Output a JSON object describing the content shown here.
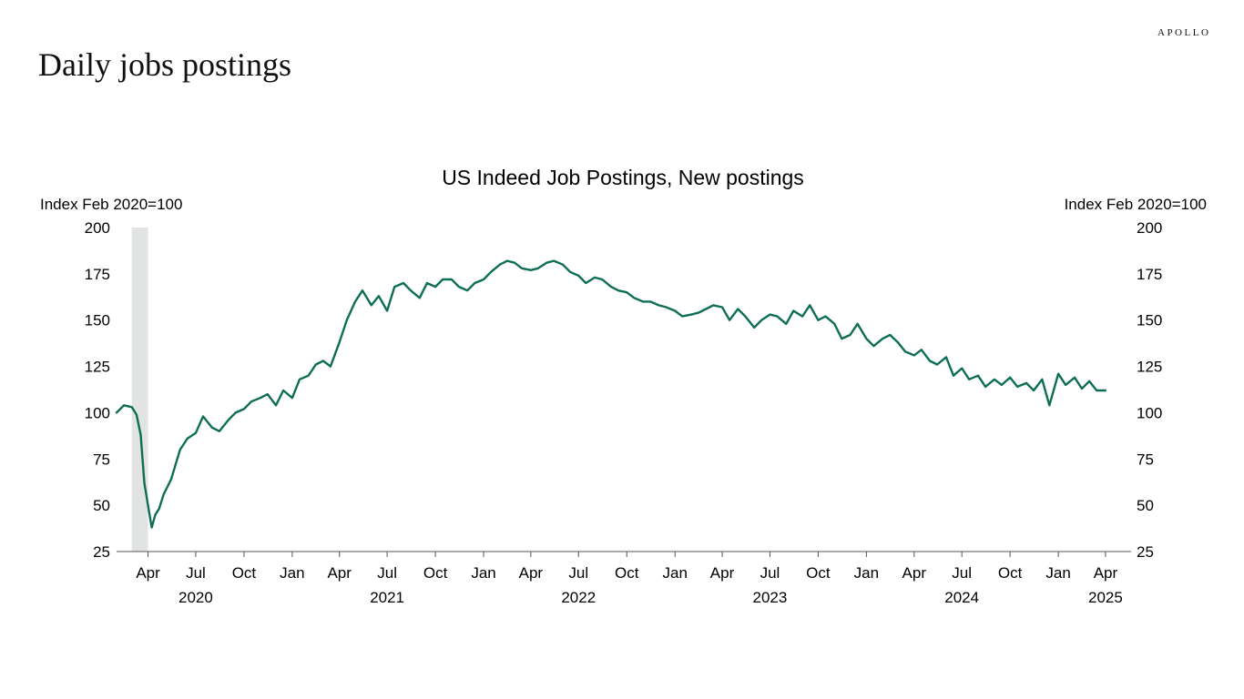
{
  "page": {
    "title": "Daily jobs postings",
    "brand": "APOLLO"
  },
  "chart_data": {
    "type": "line",
    "title": "US Indeed Job Postings, New postings",
    "ylabel_left": "Index Feb 2020=100",
    "ylabel_right": "Index Feb 2020=100",
    "ylim": [
      25,
      200
    ],
    "yticks": [
      "25",
      "50",
      "75",
      "100",
      "125",
      "150",
      "175",
      "200"
    ],
    "xlim": [
      "2020-02-01",
      "2025-04-15"
    ],
    "month_ticks": [
      {
        "date": "2020-04-01",
        "label": "Apr"
      },
      {
        "date": "2020-07-01",
        "label": "Jul"
      },
      {
        "date": "2020-10-01",
        "label": "Oct"
      },
      {
        "date": "2021-01-01",
        "label": "Jan"
      },
      {
        "date": "2021-04-01",
        "label": "Apr"
      },
      {
        "date": "2021-07-01",
        "label": "Jul"
      },
      {
        "date": "2021-10-01",
        "label": "Oct"
      },
      {
        "date": "2022-01-01",
        "label": "Jan"
      },
      {
        "date": "2022-04-01",
        "label": "Apr"
      },
      {
        "date": "2022-07-01",
        "label": "Jul"
      },
      {
        "date": "2022-10-01",
        "label": "Oct"
      },
      {
        "date": "2023-01-01",
        "label": "Jan"
      },
      {
        "date": "2023-04-01",
        "label": "Apr"
      },
      {
        "date": "2023-07-01",
        "label": "Jul"
      },
      {
        "date": "2023-10-01",
        "label": "Oct"
      },
      {
        "date": "2024-01-01",
        "label": "Jan"
      },
      {
        "date": "2024-04-01",
        "label": "Apr"
      },
      {
        "date": "2024-07-01",
        "label": "Jul"
      },
      {
        "date": "2024-10-01",
        "label": "Oct"
      },
      {
        "date": "2025-01-01",
        "label": "Jan"
      },
      {
        "date": "2025-04-01",
        "label": "Apr"
      }
    ],
    "year_labels": [
      {
        "date": "2020-07-01",
        "label": "2020"
      },
      {
        "date": "2021-07-01",
        "label": "2021"
      },
      {
        "date": "2022-07-01",
        "label": "2022"
      },
      {
        "date": "2023-07-01",
        "label": "2023"
      },
      {
        "date": "2024-07-01",
        "label": "2024"
      },
      {
        "date": "2025-04-01",
        "label": "2025"
      }
    ],
    "recession_band": [
      "2020-03-01",
      "2020-04-01"
    ],
    "line_color": "#0e6e55",
    "band_color": "#e2e4e3",
    "series": [
      {
        "x": [
          "2020-02-01",
          "2020-02-15",
          "2020-03-01",
          "2020-03-10",
          "2020-03-18",
          "2020-03-25",
          "2020-04-01",
          "2020-04-08",
          "2020-04-15",
          "2020-04-22",
          "2020-05-01",
          "2020-05-15",
          "2020-06-01",
          "2020-06-15",
          "2020-07-01",
          "2020-07-15",
          "2020-08-01",
          "2020-08-15",
          "2020-09-01",
          "2020-09-15",
          "2020-10-01",
          "2020-10-15",
          "2020-11-01",
          "2020-11-15",
          "2020-12-01",
          "2020-12-15",
          "2021-01-01",
          "2021-01-15",
          "2021-02-01",
          "2021-02-15",
          "2021-03-01",
          "2021-03-15",
          "2021-04-01",
          "2021-04-15",
          "2021-05-01",
          "2021-05-15",
          "2021-06-01",
          "2021-06-15",
          "2021-07-01",
          "2021-07-15",
          "2021-08-01",
          "2021-08-15",
          "2021-09-01",
          "2021-09-15",
          "2021-10-01",
          "2021-10-15",
          "2021-11-01",
          "2021-11-15",
          "2021-12-01",
          "2021-12-15",
          "2022-01-01",
          "2022-01-15",
          "2022-02-01",
          "2022-02-15",
          "2022-03-01",
          "2022-03-15",
          "2022-04-01",
          "2022-04-15",
          "2022-05-01",
          "2022-05-15",
          "2022-06-01",
          "2022-06-15",
          "2022-07-01",
          "2022-07-15",
          "2022-08-01",
          "2022-08-15",
          "2022-09-01",
          "2022-09-15",
          "2022-10-01",
          "2022-10-15",
          "2022-11-01",
          "2022-11-15",
          "2022-12-01",
          "2022-12-15",
          "2023-01-01",
          "2023-01-15",
          "2023-02-01",
          "2023-02-15",
          "2023-03-01",
          "2023-03-15",
          "2023-04-01",
          "2023-04-15",
          "2023-05-01",
          "2023-05-15",
          "2023-06-01",
          "2023-06-15",
          "2023-07-01",
          "2023-07-15",
          "2023-08-01",
          "2023-08-15",
          "2023-09-01",
          "2023-09-15",
          "2023-10-01",
          "2023-10-15",
          "2023-11-01",
          "2023-11-15",
          "2023-12-01",
          "2023-12-15",
          "2024-01-01",
          "2024-01-15",
          "2024-02-01",
          "2024-02-15",
          "2024-03-01",
          "2024-03-15",
          "2024-04-01",
          "2024-04-15",
          "2024-05-01",
          "2024-05-15",
          "2024-06-01",
          "2024-06-15",
          "2024-07-01",
          "2024-07-15",
          "2024-08-01",
          "2024-08-15",
          "2024-09-01",
          "2024-09-15",
          "2024-10-01",
          "2024-10-15",
          "2024-11-01",
          "2024-11-15",
          "2024-12-01",
          "2024-12-15",
          "2025-01-01",
          "2025-01-15",
          "2025-02-01",
          "2025-02-15",
          "2025-03-01",
          "2025-03-15",
          "2025-04-01"
        ],
        "y": [
          100,
          104,
          103,
          99,
          88,
          62,
          50,
          38,
          45,
          48,
          56,
          64,
          80,
          86,
          89,
          98,
          92,
          90,
          96,
          100,
          102,
          106,
          108,
          110,
          104,
          112,
          108,
          118,
          120,
          126,
          128,
          125,
          138,
          150,
          160,
          166,
          158,
          163,
          155,
          168,
          170,
          166,
          162,
          170,
          168,
          172,
          172,
          168,
          166,
          170,
          172,
          176,
          180,
          182,
          181,
          178,
          177,
          178,
          181,
          182,
          180,
          176,
          174,
          170,
          173,
          172,
          168,
          166,
          165,
          162,
          160,
          160,
          158,
          157,
          155,
          152,
          153,
          154,
          156,
          158,
          157,
          150,
          156,
          152,
          146,
          150,
          153,
          152,
          148,
          155,
          152,
          158,
          150,
          152,
          148,
          140,
          142,
          148,
          140,
          136,
          140,
          142,
          138,
          133,
          131,
          134,
          128,
          126,
          130,
          120,
          124,
          118,
          120,
          114,
          118,
          115,
          119,
          114,
          116,
          112,
          118,
          104,
          121,
          115,
          119,
          113,
          117,
          112,
          112
        ]
      }
    ]
  }
}
